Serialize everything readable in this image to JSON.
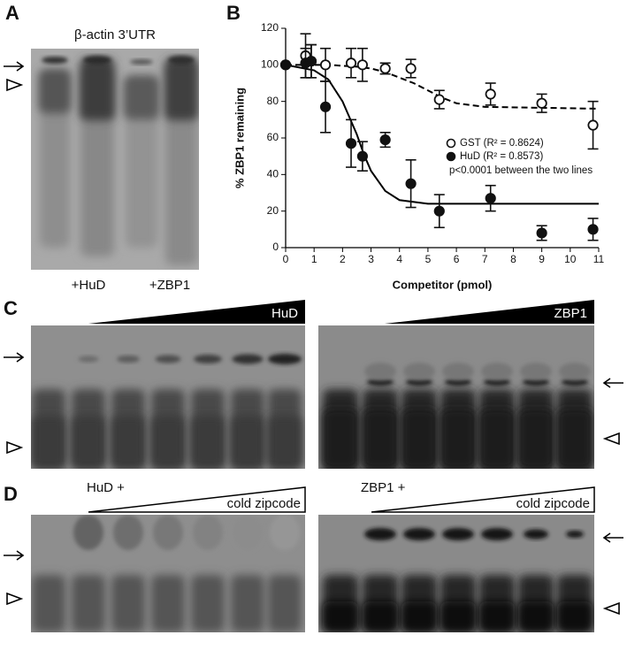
{
  "panels": {
    "A": {
      "label": "A",
      "title": "β-actin 3’UTR",
      "lanes": [
        "+HuD",
        "+ZBP1"
      ]
    },
    "C": {
      "label": "C",
      "left": "HuD",
      "right": "ZBP1"
    },
    "D": {
      "label": "D",
      "left": "HuD +",
      "left_sub": "cold zipcode",
      "right": "ZBP1 +",
      "right_sub": "cold zipcode"
    }
  },
  "chart_data": {
    "type": "scatter",
    "label": "B",
    "x_label": "Competitor (pmol)",
    "y_label": "% ZBP1 remaining",
    "xlim": [
      0,
      11
    ],
    "xticks": [
      0,
      1,
      2,
      3,
      4,
      5,
      6,
      7,
      8,
      9,
      10,
      11
    ],
    "ylim": [
      0,
      120
    ],
    "yticks": [
      0,
      20,
      40,
      60,
      80,
      100,
      120
    ],
    "x": [
      0,
      0.7,
      0.9,
      1.4,
      2.3,
      2.7,
      3.5,
      4.4,
      5.4,
      7.2,
      9,
      10.8
    ],
    "series": [
      {
        "name": "GST (R² = 0.8624)",
        "marker": "open",
        "color": "#111111",
        "values": [
          100,
          105,
          102,
          100,
          101,
          100,
          98,
          98,
          81,
          84,
          79,
          67
        ],
        "errors": [
          0,
          12,
          9,
          9,
          8,
          9,
          3,
          5,
          5,
          6,
          5,
          13
        ]
      },
      {
        "name": "HuD (R² = 0.8573)",
        "marker": "filled",
        "color": "#111111",
        "values": [
          100,
          101,
          102,
          77,
          57,
          50,
          59,
          35,
          20,
          27,
          8,
          10
        ],
        "errors": [
          0,
          8,
          9,
          14,
          13,
          8,
          4,
          13,
          9,
          7,
          4,
          6
        ]
      }
    ],
    "fits": [
      {
        "dash": true,
        "x": [
          0,
          1,
          1.5,
          2,
          2.5,
          3,
          3.5,
          4,
          4.5,
          5,
          5.5,
          6,
          7,
          11
        ],
        "values": [
          100,
          100,
          100,
          99.5,
          99,
          98,
          96,
          93,
          90,
          86,
          82,
          79,
          77,
          76
        ]
      },
      {
        "dash": false,
        "x": [
          0,
          1,
          1.5,
          2,
          2.25,
          2.5,
          2.75,
          3,
          3.5,
          4,
          5,
          7,
          11
        ],
        "values": [
          100,
          97,
          92,
          80,
          71,
          62,
          51,
          42,
          31,
          26,
          24,
          24,
          24
        ]
      }
    ],
    "annotation": "p<0.0001 between the two lines"
  }
}
